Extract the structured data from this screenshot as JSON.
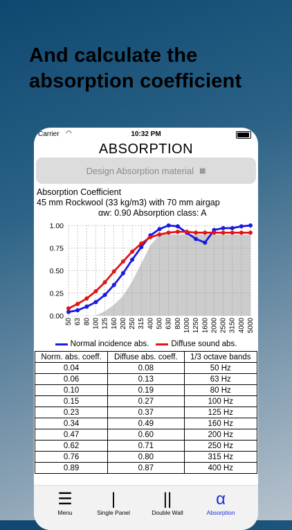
{
  "promo": {
    "line1": "And calculate the",
    "line2": "absorption coefficient"
  },
  "status": {
    "carrier": "Carrier",
    "time": "10:32 PM"
  },
  "screen": {
    "title": "ABSORPTION",
    "design_button": "Design Absorption material",
    "info_title": "Absorption Coefficient",
    "info_material": "45 mm Rockwool (33 kg/m3) with 70 mm airgap",
    "info_class": "αw: 0.90  Absorption class: A"
  },
  "colors": {
    "normal": "#1919e0",
    "diffuse": "#e01414",
    "fill": "#cccccc",
    "accent": "#1a2bd6"
  },
  "chart_data": {
    "type": "line",
    "categories": [
      "50",
      "63",
      "80",
      "100",
      "125",
      "160",
      "200",
      "250",
      "315",
      "400",
      "500",
      "630",
      "800",
      "1000",
      "1250",
      "1600",
      "2000",
      "2500",
      "3150",
      "4000",
      "5000"
    ],
    "ylim": [
      0,
      1.0
    ],
    "yticks": [
      "0.00",
      "0.25",
      "0.50",
      "0.75",
      "1.00"
    ],
    "shaded_reference": [
      0.0,
      0.0,
      0.0,
      0.0,
      0.05,
      0.12,
      0.22,
      0.38,
      0.58,
      0.78,
      0.9,
      0.9,
      0.9,
      0.9,
      0.9,
      0.9,
      0.9,
      0.9,
      0.9,
      0.9,
      0.9
    ],
    "series": [
      {
        "name": "Normal incidence abs.",
        "values": [
          0.04,
          0.06,
          0.1,
          0.15,
          0.23,
          0.34,
          0.47,
          0.62,
          0.76,
          0.89,
          0.96,
          1.0,
          0.99,
          0.92,
          0.85,
          0.81,
          0.95,
          0.97,
          0.97,
          0.99,
          1.0
        ]
      },
      {
        "name": "Diffuse sound abs.",
        "values": [
          0.08,
          0.13,
          0.19,
          0.27,
          0.37,
          0.49,
          0.6,
          0.71,
          0.8,
          0.87,
          0.9,
          0.92,
          0.93,
          0.93,
          0.92,
          0.92,
          0.92,
          0.92,
          0.92,
          0.92,
          0.92
        ]
      }
    ],
    "grid": true
  },
  "legend": {
    "normal": "Normal incidence abs.",
    "diffuse": "Diffuse sound abs."
  },
  "table": {
    "headers": [
      "Norm. abs. coeff.",
      "Diffuse abs. coeff.",
      "1/3 octave bands"
    ],
    "rows": [
      [
        "0.04",
        "0.08",
        "50 Hz"
      ],
      [
        "0.06",
        "0.13",
        "63 Hz"
      ],
      [
        "0.10",
        "0.19",
        "80 Hz"
      ],
      [
        "0.15",
        "0.27",
        "100 Hz"
      ],
      [
        "0.23",
        "0.37",
        "125 Hz"
      ],
      [
        "0.34",
        "0.49",
        "160 Hz"
      ],
      [
        "0.47",
        "0.60",
        "200 Hz"
      ],
      [
        "0.62",
        "0.71",
        "250 Hz"
      ],
      [
        "0.76",
        "0.80",
        "315 Hz"
      ],
      [
        "0.89",
        "0.87",
        "400 Hz"
      ]
    ]
  },
  "tabs": [
    {
      "glyph": "☰",
      "label": "Menu",
      "icon": "menu-icon"
    },
    {
      "glyph": "|",
      "label": "Single Panel",
      "icon": "single-panel-icon"
    },
    {
      "glyph": "||",
      "label": "Double Wall",
      "icon": "double-wall-icon"
    },
    {
      "glyph": "α",
      "label": "Absorption",
      "icon": "alpha-icon",
      "active": true
    }
  ]
}
